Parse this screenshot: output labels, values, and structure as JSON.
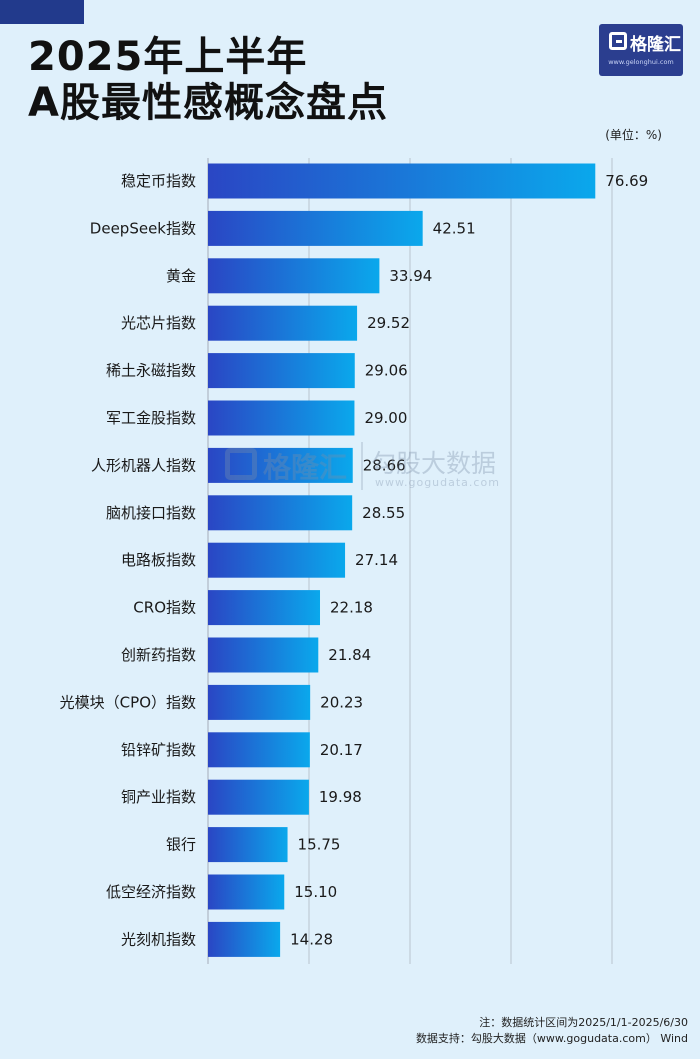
{
  "header": {
    "title_line1": "2025年上半年",
    "title_line2": "A股最性感概念盘点",
    "logo_text": "格隆汇",
    "logo_url": "www.gelonghui.com"
  },
  "watermark": {
    "logo_text": "格隆汇",
    "brand": "勾股大数据",
    "url": "www.gogudata.com"
  },
  "footer": {
    "note": "注：数据统计区间为2025/1/1-2025/6/30",
    "source": "数据支持：勾股大数据（www.gogudata.com） Wind"
  },
  "colors": {
    "bar_start": "#2a46c4",
    "bar_end": "#0aa8ec",
    "grid": "#aeb8c4",
    "background": "#dff0fb"
  },
  "chart_data": {
    "type": "bar",
    "orientation": "horizontal",
    "unit_label": "(单位：%)",
    "categories": [
      "稳定币指数",
      "DeepSeek指数",
      "黄金",
      "光芯片指数",
      "稀土永磁指数",
      "军工金股指数",
      "人形机器人指数",
      "脑机接口指数",
      "电路板指数",
      "CRO指数",
      "创新药指数",
      "光模块（CPO）指数",
      "铅锌矿指数",
      "铜产业指数",
      "银行",
      "低空经济指数",
      "光刻机指数"
    ],
    "values": [
      76.69,
      42.51,
      33.94,
      29.52,
      29.06,
      29.0,
      28.66,
      28.55,
      27.14,
      22.18,
      21.84,
      20.23,
      20.17,
      19.98,
      15.75,
      15.1,
      14.28
    ],
    "value_labels": [
      "76.69",
      "42.51",
      "33.94",
      "29.52",
      "29.06",
      "29.00",
      "28.66",
      "28.55",
      "27.14",
      "22.18",
      "21.84",
      "20.23",
      "20.17",
      "19.98",
      "15.75",
      "15.10",
      "14.28"
    ],
    "xlim": [
      0,
      80
    ],
    "grid": true,
    "legend": "none"
  }
}
